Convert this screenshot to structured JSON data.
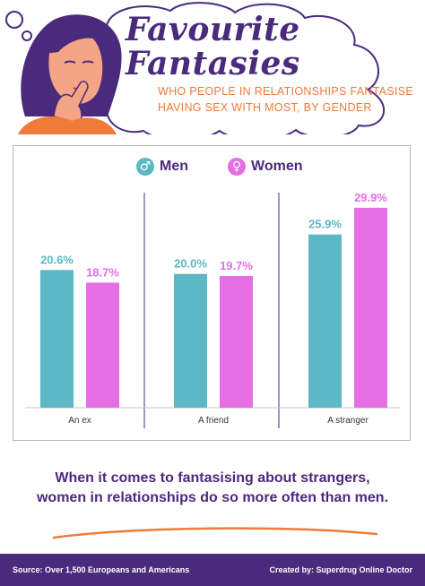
{
  "header": {
    "title_line1": "Favourite",
    "title_line2": "Fantasies",
    "subtitle_line1": "WHO PEOPLE IN RELATIONSHIPS FANTASISE",
    "subtitle_line2": "HAVING SEX WITH MOST, BY GENDER"
  },
  "legend": {
    "men_label": "Men",
    "women_label": "Women",
    "men_icon": "male-symbol",
    "women_icon": "female-symbol"
  },
  "colors": {
    "men": "#5bb8c4",
    "women": "#e56ee5",
    "purple": "#4a2a7d",
    "orange": "#f07a3a"
  },
  "chart_data": {
    "type": "bar",
    "categories": [
      "An ex",
      "A friend",
      "A stranger"
    ],
    "series": [
      {
        "name": "Men",
        "values": [
          20.6,
          20.0,
          25.9
        ],
        "labels": [
          "20.6%",
          "20.0%",
          "25.9%"
        ]
      },
      {
        "name": "Women",
        "values": [
          18.7,
          19.7,
          29.9
        ],
        "labels": [
          "18.7%",
          "19.7%",
          "29.9%"
        ]
      }
    ],
    "title": "",
    "ylim": [
      0,
      33.5
    ],
    "legend_position": "top"
  },
  "caption": {
    "line1": "When it comes to fantasising about strangers,",
    "line2": "women in relationships do so more often than men."
  },
  "footer": {
    "source": "Source: Over 1,500 Europeans and Americans",
    "credit": "Created by: Superdrug Online Doctor"
  }
}
